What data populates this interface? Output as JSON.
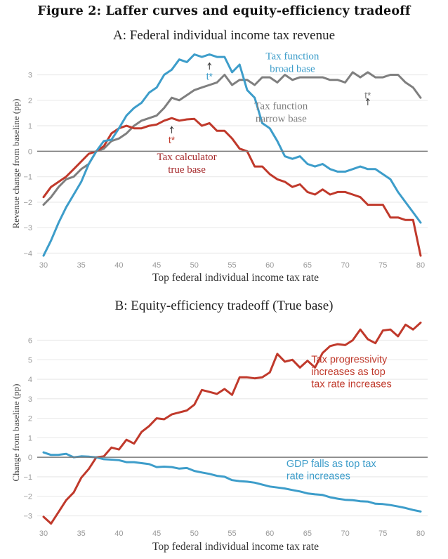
{
  "figure_title": "Figure 2: Laffer curves and equity-efficiency tradeoff",
  "colors": {
    "blue": "#3d9dca",
    "gray": "#7f7f7f",
    "red": "#c0392b",
    "darkred": "#a5282a",
    "grid": "#ececec",
    "zero": "#7a7a7a"
  },
  "chart_data": [
    {
      "type": "line",
      "title": "A: Federal individual income tax revenue",
      "xlabel": "Top federal individual income tax rate",
      "ylabel": "Revenue change from baseline (pp)",
      "xlim": [
        30,
        80
      ],
      "ylim": [
        -4,
        3
      ],
      "xticks": [
        30,
        35,
        40,
        45,
        50,
        55,
        60,
        65,
        70,
        75,
        80
      ],
      "yticks": [
        -4,
        -3,
        -2,
        -1,
        0,
        1,
        2,
        3
      ],
      "grid": true,
      "x": [
        30,
        31,
        32,
        33,
        34,
        35,
        36,
        37,
        38,
        39,
        40,
        41,
        42,
        43,
        44,
        45,
        46,
        47,
        48,
        49,
        50,
        51,
        52,
        53,
        54,
        55,
        56,
        57,
        58,
        59,
        60,
        61,
        62,
        63,
        64,
        65,
        66,
        67,
        68,
        69,
        70,
        71,
        72,
        73,
        74,
        75,
        76,
        77,
        78,
        79,
        80
      ],
      "series": [
        {
          "name": "Tax function broad base",
          "color_key": "blue",
          "values": [
            -4.1,
            -3.5,
            -2.8,
            -2.2,
            -1.7,
            -1.2,
            -0.5,
            0,
            0.4,
            0.45,
            0.9,
            1.4,
            1.7,
            1.9,
            2.3,
            2.5,
            3.0,
            3.2,
            3.6,
            3.5,
            3.8,
            3.7,
            3.8,
            3.7,
            3.7,
            3.1,
            3.4,
            2.4,
            2.1,
            1.1,
            0.9,
            0.4,
            -0.2,
            -0.3,
            -0.2,
            -0.5,
            -0.6,
            -0.5,
            -0.7,
            -0.8,
            -0.8,
            -0.7,
            -0.6,
            -0.7,
            -0.7,
            -0.9,
            -1.1,
            -1.6,
            -2.0,
            -2.4,
            -2.8
          ]
        },
        {
          "name": "Tax function narrow base",
          "color_key": "gray",
          "values": [
            -2.1,
            -1.8,
            -1.4,
            -1.1,
            -1.0,
            -0.7,
            -0.5,
            0,
            0.1,
            0.4,
            0.5,
            0.7,
            1.0,
            1.2,
            1.3,
            1.4,
            1.7,
            2.1,
            2.0,
            2.2,
            2.4,
            2.5,
            2.6,
            2.7,
            3.0,
            2.6,
            2.8,
            2.8,
            2.6,
            2.9,
            2.9,
            2.7,
            3.0,
            2.8,
            2.9,
            2.9,
            2.9,
            2.9,
            2.8,
            2.8,
            2.7,
            3.1,
            2.9,
            3.1,
            2.9,
            2.9,
            3.0,
            3.0,
            2.7,
            2.5,
            2.1
          ]
        },
        {
          "name": "Tax calculator true base",
          "color_key": "red",
          "values": [
            -1.8,
            -1.4,
            -1.2,
            -1.0,
            -0.7,
            -0.4,
            -0.1,
            0,
            0.2,
            0.7,
            0.9,
            1.0,
            0.9,
            0.9,
            1.0,
            1.05,
            1.2,
            1.3,
            1.2,
            1.25,
            1.27,
            1.0,
            1.1,
            0.8,
            0.8,
            0.5,
            0.1,
            0.0,
            -0.6,
            -0.6,
            -0.9,
            -1.1,
            -1.2,
            -1.4,
            -1.3,
            -1.6,
            -1.7,
            -1.5,
            -1.7,
            -1.6,
            -1.6,
            -1.7,
            -1.8,
            -2.1,
            -2.1,
            -2.1,
            -2.6,
            -2.6,
            -2.7,
            -2.7,
            -4.1
          ]
        }
      ],
      "annotations": [
        {
          "text_lines": [
            "Tax function",
            "broad base"
          ],
          "color_key": "blue",
          "x": 63,
          "y": 3.6
        },
        {
          "text_lines": [
            "Tax function",
            "narrow base"
          ],
          "color_key": "gray",
          "x": 61.5,
          "y": 1.65
        },
        {
          "text_lines": [
            "Tax calculator",
            "true base"
          ],
          "color_key": "darkred",
          "x": 49,
          "y": -0.35
        },
        {
          "text": "t*",
          "color_key": "blue",
          "x": 52,
          "arrow_y": 3.45,
          "label_y": 2.95
        },
        {
          "text": "t*",
          "color_key": "gray",
          "x": 73,
          "arrow_y": 2.05,
          "label_y": 2.2
        },
        {
          "text": "t*",
          "color_key": "red",
          "x": 47,
          "arrow_y": 0.95,
          "label_y": 0.45
        }
      ]
    },
    {
      "type": "line",
      "title": "B: Equity-efficiency tradeoff (True base)",
      "xlabel": "Top federal individual income tax rate",
      "ylabel": "Change from baseline (pp)",
      "xlim": [
        30,
        80
      ],
      "ylim": [
        -3,
        6
      ],
      "xticks": [
        30,
        35,
        40,
        45,
        50,
        55,
        60,
        65,
        70,
        75,
        80
      ],
      "yticks": [
        -3,
        -2,
        -1,
        0,
        1,
        2,
        3,
        4,
        5,
        6
      ],
      "grid": true,
      "x": [
        30,
        31,
        32,
        33,
        34,
        35,
        36,
        37,
        38,
        39,
        40,
        41,
        42,
        43,
        44,
        45,
        46,
        47,
        48,
        49,
        50,
        51,
        52,
        53,
        54,
        55,
        56,
        57,
        58,
        59,
        60,
        61,
        62,
        63,
        64,
        65,
        66,
        67,
        68,
        69,
        70,
        71,
        72,
        73,
        74,
        75,
        76,
        77,
        78,
        79,
        80
      ],
      "series": [
        {
          "name": "Tax progressivity",
          "color_key": "red",
          "values": [
            -3.05,
            -3.4,
            -2.8,
            -2.2,
            -1.8,
            -1.05,
            -0.6,
            0,
            0.05,
            0.5,
            0.4,
            0.9,
            0.7,
            1.3,
            1.6,
            2.0,
            1.95,
            2.2,
            2.3,
            2.4,
            2.7,
            3.45,
            3.35,
            3.25,
            3.5,
            3.2,
            4.1,
            4.1,
            4.05,
            4.1,
            4.35,
            5.3,
            4.9,
            5.0,
            4.6,
            4.95,
            4.6,
            5.35,
            5.7,
            5.8,
            5.75,
            6.0,
            6.55,
            6.05,
            5.85,
            6.5,
            6.55,
            6.2,
            6.8,
            6.55,
            6.9
          ]
        },
        {
          "name": "GDP",
          "color_key": "blue",
          "values": [
            0.25,
            0.12,
            0.13,
            0.18,
            0.0,
            0.05,
            0.03,
            0,
            -0.1,
            -0.12,
            -0.15,
            -0.25,
            -0.25,
            -0.3,
            -0.35,
            -0.5,
            -0.48,
            -0.5,
            -0.58,
            -0.55,
            -0.7,
            -0.78,
            -0.85,
            -0.95,
            -1.0,
            -1.17,
            -1.22,
            -1.25,
            -1.3,
            -1.4,
            -1.5,
            -1.55,
            -1.6,
            -1.68,
            -1.75,
            -1.85,
            -1.9,
            -1.93,
            -2.05,
            -2.12,
            -2.18,
            -2.2,
            -2.25,
            -2.27,
            -2.38,
            -2.4,
            -2.45,
            -2.52,
            -2.6,
            -2.7,
            -2.78
          ]
        }
      ],
      "annotations": [
        {
          "text_lines": [
            "Tax progressivity",
            "increases as top",
            "tax rate increases"
          ],
          "color_key": "red",
          "x": 65.5,
          "y": 4.85
        },
        {
          "text_lines": [
            "GDP falls as top tax",
            "rate increases"
          ],
          "color_key": "blue",
          "x": 62.2,
          "y": -0.5
        }
      ]
    }
  ]
}
